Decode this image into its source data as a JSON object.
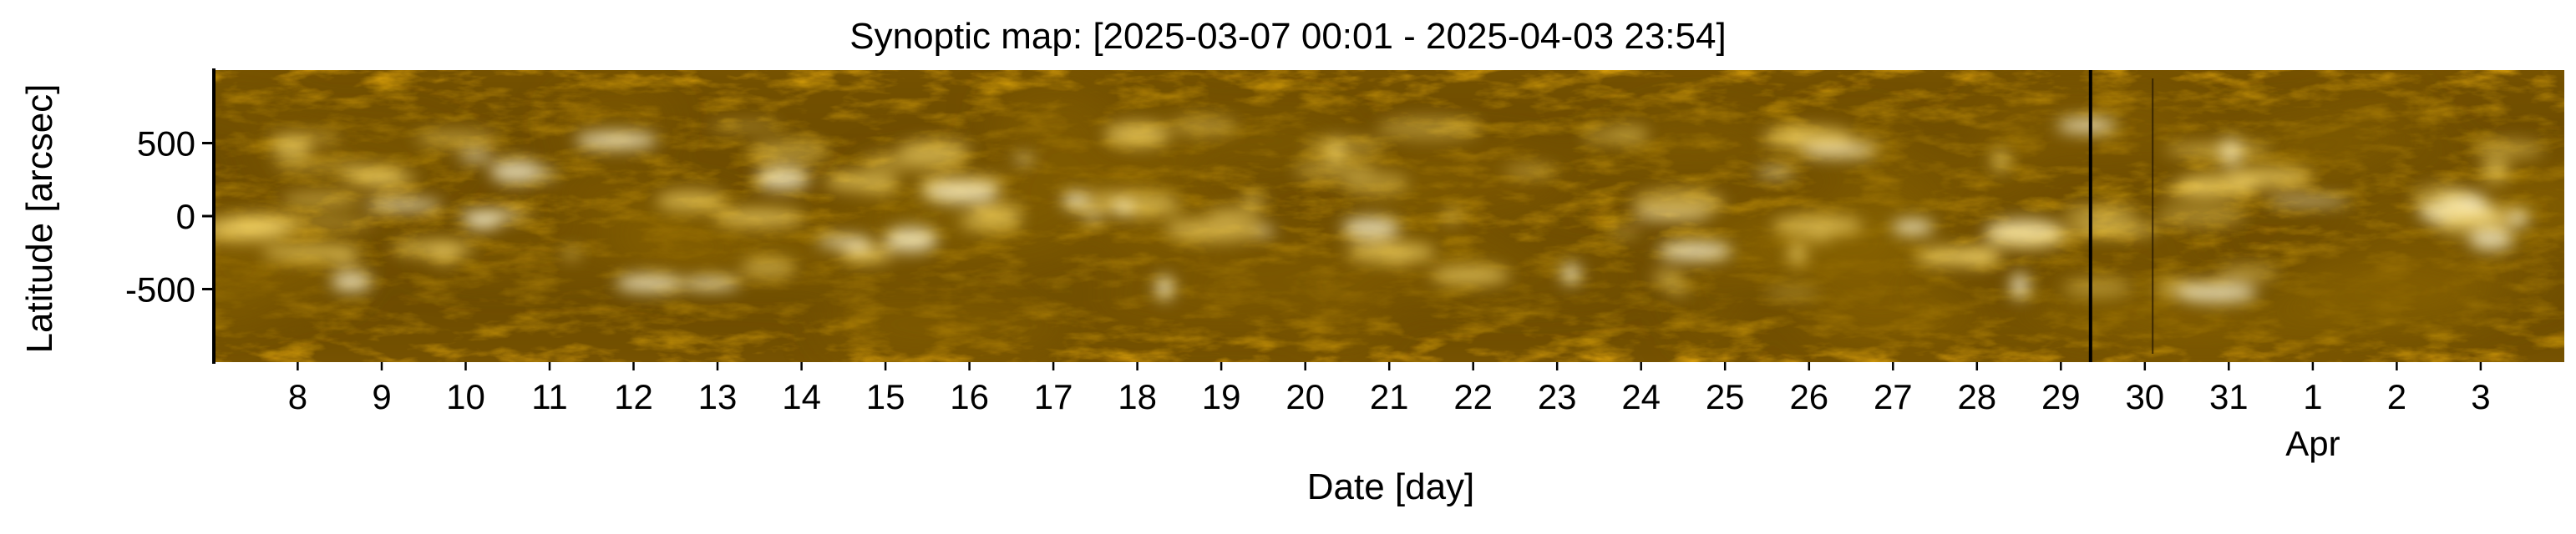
{
  "chart_data": {
    "type": "heatmap",
    "title": "Synoptic map: [2025-03-07 00:01 - 2025-04-03 23:54]",
    "xlabel": "Date [day]",
    "ylabel": "Latitude [arcsec]",
    "x_axis": {
      "unit": "day",
      "range": [
        "2025-03-07",
        "2025-04-03"
      ],
      "ticks": [
        {
          "value": "2025-03-08",
          "label": "8"
        },
        {
          "value": "2025-03-09",
          "label": "9"
        },
        {
          "value": "2025-03-10",
          "label": "10"
        },
        {
          "value": "2025-03-11",
          "label": "11"
        },
        {
          "value": "2025-03-12",
          "label": "12"
        },
        {
          "value": "2025-03-13",
          "label": "13"
        },
        {
          "value": "2025-03-14",
          "label": "14"
        },
        {
          "value": "2025-03-15",
          "label": "15"
        },
        {
          "value": "2025-03-16",
          "label": "16"
        },
        {
          "value": "2025-03-17",
          "label": "17"
        },
        {
          "value": "2025-03-18",
          "label": "18"
        },
        {
          "value": "2025-03-19",
          "label": "19"
        },
        {
          "value": "2025-03-20",
          "label": "20"
        },
        {
          "value": "2025-03-21",
          "label": "21"
        },
        {
          "value": "2025-03-22",
          "label": "22"
        },
        {
          "value": "2025-03-23",
          "label": "23"
        },
        {
          "value": "2025-03-24",
          "label": "24"
        },
        {
          "value": "2025-03-25",
          "label": "25"
        },
        {
          "value": "2025-03-26",
          "label": "26"
        },
        {
          "value": "2025-03-27",
          "label": "27"
        },
        {
          "value": "2025-03-28",
          "label": "28"
        },
        {
          "value": "2025-03-29",
          "label": "29"
        },
        {
          "value": "2025-03-30",
          "label": "30"
        },
        {
          "value": "2025-03-31",
          "label": "31"
        },
        {
          "value": "2025-04-01",
          "label": "1",
          "sublabel": "Apr"
        },
        {
          "value": "2025-04-02",
          "label": "2"
        },
        {
          "value": "2025-04-03",
          "label": "3"
        }
      ]
    },
    "y_axis": {
      "unit": "arcsec",
      "range": [
        -1000,
        1000
      ],
      "ticks": [
        500,
        0,
        -500
      ]
    },
    "colormap": [
      "#4d3303",
      "#8a6406",
      "#c99508",
      "#f5bd14",
      "#ffe070",
      "#fff8d8"
    ],
    "data_gaps": [
      {
        "start": "2025-03-29 08:00",
        "end": "2025-03-29 09:30"
      },
      {
        "start": "2025-03-30 02:00",
        "end": "2025-03-30 02:20"
      }
    ],
    "grid": false,
    "legend": "none"
  }
}
